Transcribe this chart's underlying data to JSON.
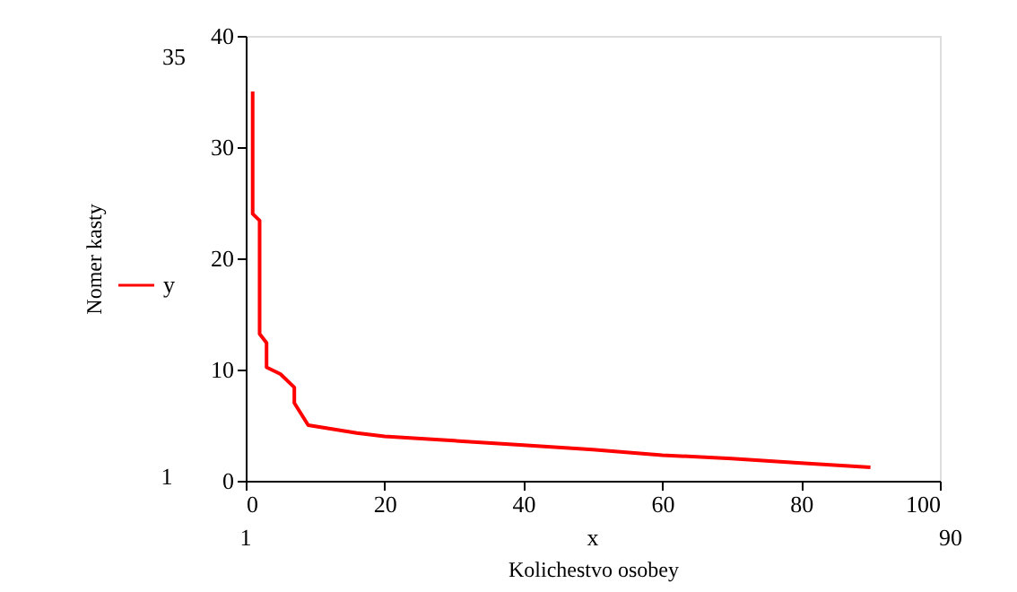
{
  "chart_data": {
    "type": "line",
    "xlabel": "Kolichestvo osobey",
    "ylabel": "Nomer kasty",
    "series": [
      {
        "name": "y",
        "color": "#ff0000",
        "x": [
          1,
          1,
          2,
          2,
          3,
          3,
          5,
          7,
          7,
          9,
          12,
          16,
          20,
          30,
          40,
          50,
          60,
          70,
          80,
          90
        ],
        "values": [
          35,
          24,
          23.4,
          13.2,
          12.4,
          10.2,
          9.6,
          8.4,
          7,
          5,
          4.7,
          4.3,
          4,
          3.6,
          3.2,
          2.8,
          2.3,
          2,
          1.6,
          1.2
        ]
      }
    ],
    "xlim": [
      0,
      100
    ],
    "xticks": [
      0,
      20,
      40,
      60,
      80,
      100
    ],
    "ylim": [
      0,
      40
    ],
    "yticks": [
      0,
      10,
      20,
      30,
      40
    ],
    "grid": false,
    "legend": "left",
    "line_style": "solid",
    "marker": "none",
    "annotations": [
      "35",
      "1",
      "1",
      "x",
      "90"
    ]
  }
}
